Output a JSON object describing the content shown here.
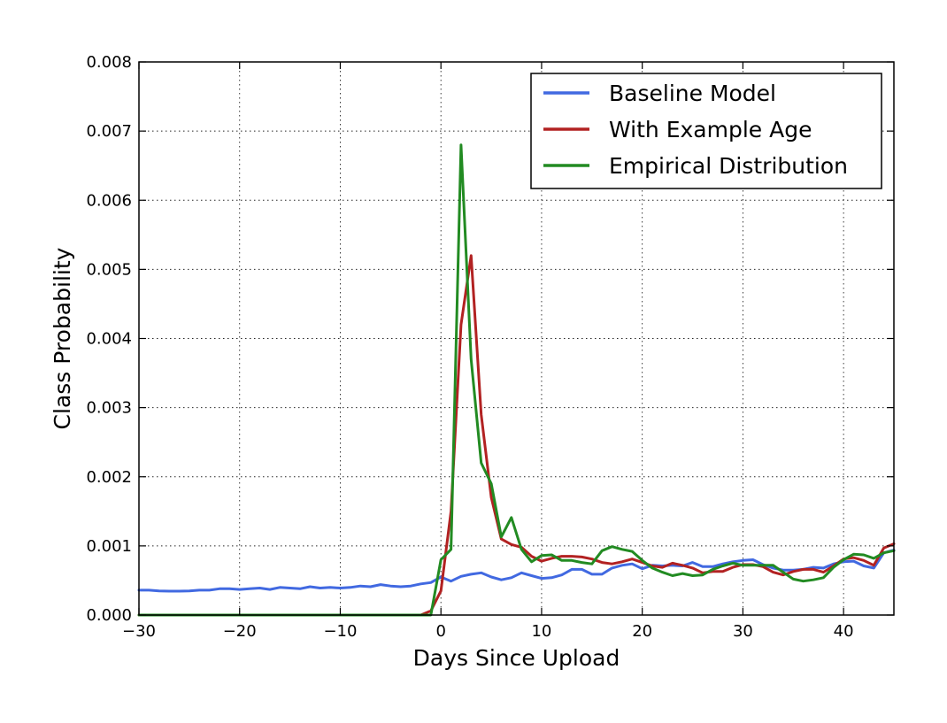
{
  "chart_data": {
    "type": "line",
    "title": "",
    "xlabel": "Days Since Upload",
    "ylabel": "Class Probability",
    "xlim": [
      -30,
      45
    ],
    "ylim": [
      0,
      0.008
    ],
    "grid": true,
    "legend_position": "top-right",
    "x_ticks": [
      -30,
      -20,
      -10,
      0,
      10,
      20,
      30,
      40
    ],
    "x_tick_labels": [
      "−30",
      "−20",
      "−10",
      "0",
      "10",
      "20",
      "30",
      "40"
    ],
    "y_ticks": [
      0,
      0.001,
      0.002,
      0.003,
      0.004,
      0.005,
      0.006,
      0.007,
      0.008
    ],
    "y_tick_labels": [
      "0.000",
      "0.001",
      "0.002",
      "0.003",
      "0.004",
      "0.005",
      "0.006",
      "0.007",
      "0.008"
    ],
    "series": [
      {
        "name": "Baseline Model",
        "color": "#4169e1",
        "x": [
          -30,
          -29,
          -28,
          -27,
          -26,
          -25,
          -24,
          -23,
          -22,
          -21,
          -20,
          -19,
          -18,
          -17,
          -16,
          -15,
          -14,
          -13,
          -12,
          -11,
          -10,
          -9,
          -8,
          -7,
          -6,
          -5,
          -4,
          -3,
          -2,
          -1,
          0,
          1,
          2,
          3,
          4,
          5,
          6,
          7,
          8,
          9,
          10,
          11,
          12,
          13,
          14,
          15,
          16,
          17,
          18,
          19,
          20,
          21,
          22,
          23,
          24,
          25,
          26,
          27,
          28,
          29,
          30,
          31,
          32,
          33,
          34,
          35,
          36,
          37,
          38,
          39,
          40,
          41,
          42,
          43,
          44,
          45
        ],
        "y": [
          0.00036,
          0.00036,
          0.00035,
          0.000345,
          0.000345,
          0.00035,
          0.00036,
          0.00036,
          0.00038,
          0.00038,
          0.00037,
          0.00038,
          0.00039,
          0.00037,
          0.0004,
          0.00039,
          0.00038,
          0.00041,
          0.00039,
          0.0004,
          0.00039,
          0.0004,
          0.00042,
          0.00041,
          0.00044,
          0.00042,
          0.00041,
          0.00042,
          0.00045,
          0.00047,
          0.00055,
          0.00049,
          0.00056,
          0.00059,
          0.00061,
          0.00055,
          0.00051,
          0.00054,
          0.00061,
          0.00057,
          0.00053,
          0.00054,
          0.00058,
          0.00066,
          0.00066,
          0.00059,
          0.00059,
          0.00068,
          0.00072,
          0.00074,
          0.00067,
          0.00072,
          0.00071,
          0.00072,
          0.00071,
          0.00076,
          0.0007,
          0.0007,
          0.00074,
          0.00077,
          0.00079,
          0.0008,
          0.00073,
          0.00068,
          0.00065,
          0.00065,
          0.00066,
          0.00069,
          0.00068,
          0.00074,
          0.00077,
          0.00078,
          0.00071,
          0.00068,
          0.0009,
          0.00094
        ]
      },
      {
        "name": "With Example Age",
        "color": "#b22222",
        "x": [
          -30,
          -20,
          -10,
          -2,
          -1,
          0,
          1,
          2,
          3,
          4,
          5,
          6,
          7,
          8,
          9,
          10,
          11,
          12,
          13,
          14,
          15,
          16,
          17,
          18,
          19,
          20,
          21,
          22,
          23,
          24,
          25,
          26,
          27,
          28,
          29,
          30,
          31,
          32,
          33,
          34,
          35,
          36,
          37,
          38,
          39,
          40,
          41,
          42,
          43,
          44,
          45
        ],
        "y": [
          0,
          0,
          0,
          0,
          6e-05,
          0.00035,
          0.0015,
          0.0042,
          0.0052,
          0.0029,
          0.0017,
          0.0011,
          0.00102,
          0.00098,
          0.00085,
          0.00078,
          0.00082,
          0.00085,
          0.00085,
          0.00084,
          0.00081,
          0.00076,
          0.00074,
          0.00077,
          0.00081,
          0.00076,
          0.00071,
          0.00069,
          0.00075,
          0.00072,
          0.00068,
          0.00061,
          0.00063,
          0.00063,
          0.00069,
          0.00073,
          0.00073,
          0.0007,
          0.00062,
          0.00058,
          0.00063,
          0.00066,
          0.00066,
          0.00062,
          0.00071,
          0.00081,
          0.00083,
          0.00079,
          0.00072,
          0.00097,
          0.00103
        ]
      },
      {
        "name": "Empirical Distribution",
        "color": "#228b22",
        "x": [
          -30,
          -20,
          -10,
          -2,
          -1,
          0,
          1,
          2,
          3,
          4,
          5,
          6,
          7,
          8,
          9,
          10,
          11,
          12,
          13,
          14,
          15,
          16,
          17,
          18,
          19,
          20,
          21,
          22,
          23,
          24,
          25,
          26,
          27,
          28,
          29,
          30,
          31,
          32,
          33,
          34,
          35,
          36,
          37,
          38,
          39,
          40,
          41,
          42,
          43,
          44,
          45
        ],
        "y": [
          0,
          0,
          0,
          0,
          0,
          0.0008,
          0.00095,
          0.0068,
          0.0037,
          0.0022,
          0.0019,
          0.00113,
          0.00141,
          0.00095,
          0.00077,
          0.00086,
          0.00087,
          0.00079,
          0.00079,
          0.00076,
          0.00074,
          0.00093,
          0.00099,
          0.00095,
          0.00092,
          0.00079,
          0.00068,
          0.00062,
          0.00057,
          0.0006,
          0.00057,
          0.00058,
          0.00066,
          0.00071,
          0.00075,
          0.00072,
          0.00072,
          0.00072,
          0.00072,
          0.00062,
          0.00052,
          0.00049,
          0.00051,
          0.00054,
          0.00069,
          0.0008,
          0.00088,
          0.00087,
          0.00082,
          0.0009,
          0.00093
        ]
      }
    ]
  }
}
